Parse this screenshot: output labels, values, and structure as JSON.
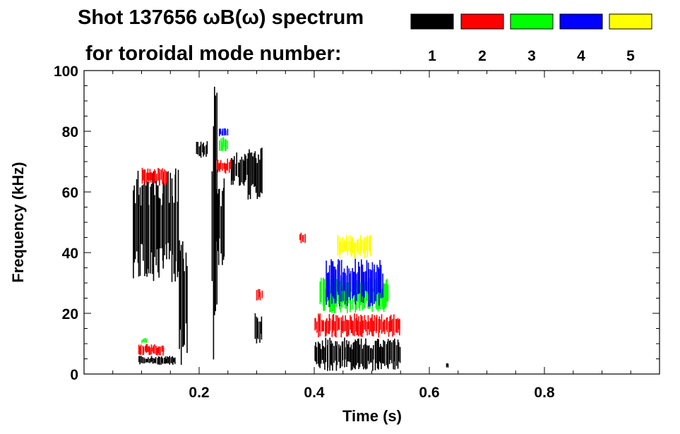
{
  "chart_data": {
    "type": "heatmap",
    "title_line1": "Shot 137656 ωB(ω) spectrum",
    "title_line2": "for toroidal mode number:",
    "xlabel": "Time (s)",
    "ylabel": "Frequency (kHz)",
    "xlim": [
      0.0,
      1.0
    ],
    "ylim": [
      0,
      100
    ],
    "x_ticks": [
      0.2,
      0.4,
      0.6,
      0.8
    ],
    "x_tick_labels": [
      "0.2",
      "0.4",
      "0.6",
      "0.8"
    ],
    "y_ticks": [
      0,
      20,
      40,
      60,
      80,
      100
    ],
    "y_tick_labels": [
      "0",
      "20",
      "40",
      "60",
      "80",
      "100"
    ],
    "grid": false,
    "legend_position": "top-right",
    "legend": [
      {
        "label": "1",
        "color": "#000000"
      },
      {
        "label": "2",
        "color": "#ff0000"
      },
      {
        "label": "3",
        "color": "#00ff00"
      },
      {
        "label": "4",
        "color": "#0000ff"
      },
      {
        "label": "5",
        "color": "#ffff00"
      }
    ],
    "series": [
      {
        "name": "1",
        "color": "#000000",
        "regions": [
          {
            "t": [
              0.085,
              0.165
            ],
            "f": [
              30,
              68
            ]
          },
          {
            "t": [
              0.165,
              0.18
            ],
            "f": [
              3,
              45
            ]
          },
          {
            "t": [
              0.095,
              0.16
            ],
            "f": [
              3,
              6
            ]
          },
          {
            "t": [
              0.195,
              0.215
            ],
            "f": [
              71,
              77
            ]
          },
          {
            "t": [
              0.225,
              0.245
            ],
            "f": [
              35,
              65
            ]
          },
          {
            "t": [
              0.222,
              0.232
            ],
            "f": [
              3,
              100
            ]
          },
          {
            "t": [
              0.255,
              0.285
            ],
            "f": [
              62,
              73
            ]
          },
          {
            "t": [
              0.285,
              0.31
            ],
            "f": [
              57,
              75
            ]
          },
          {
            "t": [
              0.297,
              0.31
            ],
            "f": [
              10,
              20
            ]
          },
          {
            "t": [
              0.4,
              0.55
            ],
            "f": [
              1,
              12
            ]
          },
          {
            "t": [
              0.63,
              0.633
            ],
            "f": [
              2,
              4
            ]
          }
        ]
      },
      {
        "name": "2",
        "color": "#ff0000",
        "regions": [
          {
            "t": [
              0.1,
              0.145
            ],
            "f": [
              62,
              68
            ]
          },
          {
            "t": [
              0.095,
              0.14
            ],
            "f": [
              6,
              10
            ]
          },
          {
            "t": [
              0.23,
              0.255
            ],
            "f": [
              66,
              71
            ]
          },
          {
            "t": [
              0.3,
              0.31
            ],
            "f": [
              24,
              28
            ]
          },
          {
            "t": [
              0.4,
              0.55
            ],
            "f": [
              12,
              20
            ]
          },
          {
            "t": [
              0.375,
              0.385
            ],
            "f": [
              43,
              47
            ]
          }
        ]
      },
      {
        "name": "3",
        "color": "#00ff00",
        "regions": [
          {
            "t": [
              0.235,
              0.25
            ],
            "f": [
              73,
              78
            ]
          },
          {
            "t": [
              0.41,
              0.53
            ],
            "f": [
              20,
              32
            ]
          },
          {
            "t": [
              0.1,
              0.11
            ],
            "f": [
              10,
              12
            ]
          }
        ]
      },
      {
        "name": "4",
        "color": "#0000ff",
        "regions": [
          {
            "t": [
              0.235,
              0.25
            ],
            "f": [
              78,
              81
            ]
          },
          {
            "t": [
              0.42,
              0.52
            ],
            "f": [
              22,
              38
            ]
          }
        ]
      },
      {
        "name": "5",
        "color": "#ffff00",
        "regions": [
          {
            "t": [
              0.44,
              0.5
            ],
            "f": [
              38,
              46
            ]
          }
        ]
      }
    ]
  }
}
